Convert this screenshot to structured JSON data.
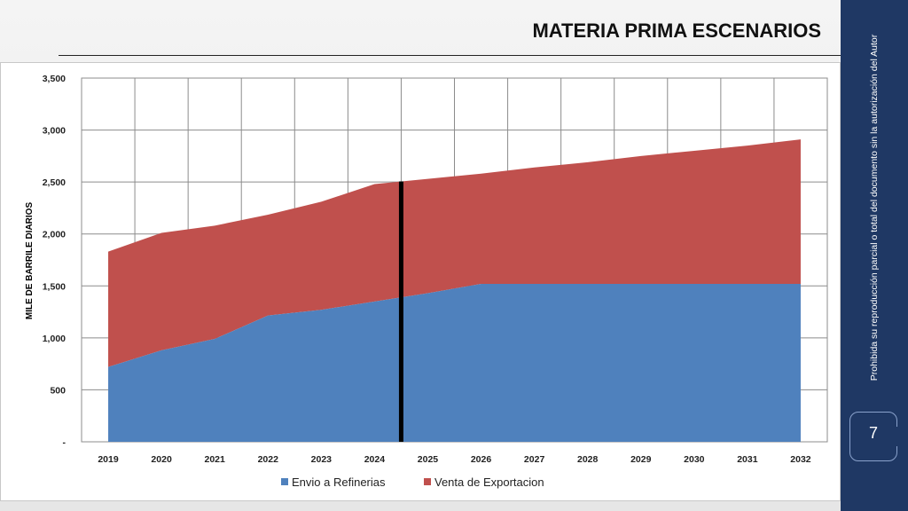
{
  "slide": {
    "title": "MATERIA PRIMA ESCENARIOS",
    "side_note": "Prohibida su reproducción parcial o total del documento sin la autorización del Autor",
    "page_number": "7"
  },
  "colors": {
    "envio": "#4f81bd",
    "venta": "#c0504d",
    "marker": "#000000",
    "sidebar": "#1f3864"
  },
  "chart_data": {
    "type": "area",
    "stacked": true,
    "ylabel": "MILE DE BARRILE DIARIOS",
    "x": [
      "2019",
      "2020",
      "2021",
      "2022",
      "2023",
      "2024",
      "2025",
      "2026",
      "2027",
      "2028",
      "2029",
      "2030",
      "2031",
      "2032"
    ],
    "ylim": [
      0,
      3500
    ],
    "yticks": [
      {
        "value": 0,
        "label": "-"
      },
      {
        "value": 500,
        "label": "500"
      },
      {
        "value": 1000,
        "label": "1,000"
      },
      {
        "value": 1500,
        "label": "1,500"
      },
      {
        "value": 2000,
        "label": "2,000"
      },
      {
        "value": 2500,
        "label": "2,500"
      },
      {
        "value": 3000,
        "label": "3,000"
      },
      {
        "value": 3500,
        "label": "3,500"
      }
    ],
    "grid": true,
    "legend_position": "bottom",
    "series": [
      {
        "name": "Envio a Refinerias",
        "values": [
          720,
          880,
          990,
          1215,
          1270,
          1350,
          1430,
          1520,
          1520,
          1520,
          1520,
          1520,
          1520,
          1520
        ]
      },
      {
        "name": "Venta de Exportacion",
        "values": [
          1110,
          1130,
          1090,
          970,
          1040,
          1130,
          1100,
          1060,
          1120,
          1170,
          1230,
          1280,
          1330,
          1390
        ]
      }
    ],
    "marker_line": {
      "between": [
        "2024",
        "2025"
      ]
    }
  }
}
